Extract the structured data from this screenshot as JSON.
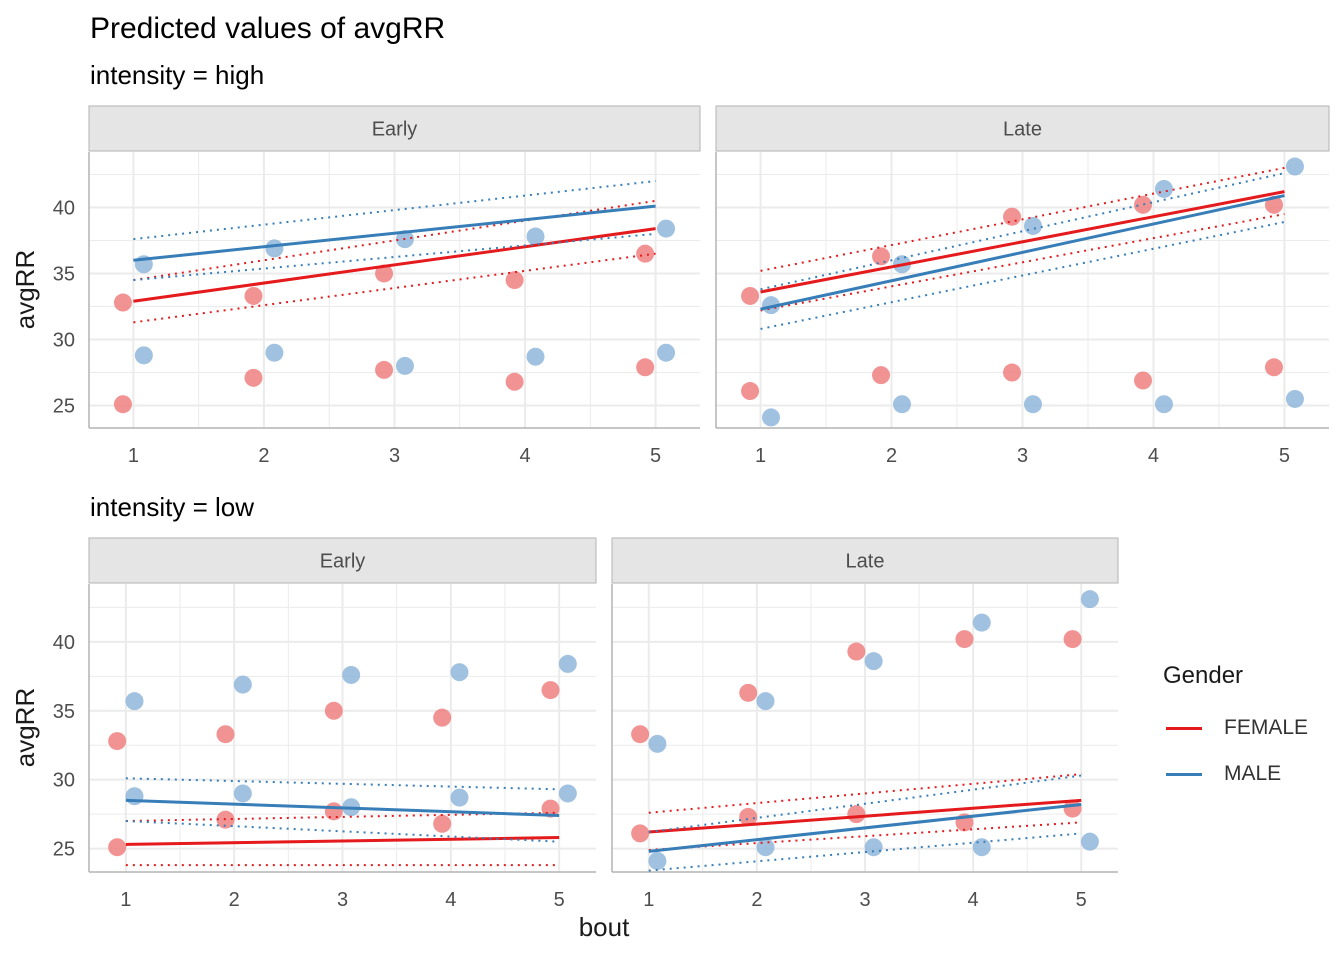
{
  "title": "Predicted values of avgRR",
  "x_axis_label": "bout",
  "y_axis_label": "avgRR",
  "legend": {
    "title": "Gender",
    "items": [
      {
        "label": "FEMALE",
        "color": "#e41a1c"
      },
      {
        "label": "MALE",
        "color": "#377eb8"
      }
    ]
  },
  "colors": {
    "FEMALE_point": "#f08080",
    "MALE_point": "#8fb6d9",
    "strip_bg": "#e5e5e5",
    "grid": "#ebebeb"
  },
  "chart_data": {
    "type": "scatter",
    "x_ticks": [
      "1",
      "2",
      "3",
      "4",
      "5"
    ],
    "y_ticks": [
      "25",
      "30",
      "35",
      "40"
    ],
    "xlim": [
      0.66,
      5.34
    ],
    "ylim": [
      23.3,
      44.2
    ],
    "observed_points": {
      "FEMALE": {
        "Early": [
          [
            1,
            32.8
          ],
          [
            1,
            25.1
          ],
          [
            2,
            33.3
          ],
          [
            2,
            27.1
          ],
          [
            3,
            35.0
          ],
          [
            3,
            27.7
          ],
          [
            4,
            34.5
          ],
          [
            4,
            26.8
          ],
          [
            5,
            36.5
          ],
          [
            5,
            27.9
          ]
        ],
        "Late": [
          [
            1,
            33.3
          ],
          [
            1,
            26.1
          ],
          [
            2,
            36.3
          ],
          [
            2,
            27.3
          ],
          [
            3,
            39.3
          ],
          [
            3,
            27.5
          ],
          [
            4,
            40.2
          ],
          [
            4,
            26.9
          ],
          [
            5,
            40.2
          ],
          [
            5,
            27.9
          ]
        ]
      },
      "MALE": {
        "Early": [
          [
            1,
            35.7
          ],
          [
            1,
            28.8
          ],
          [
            2,
            36.9
          ],
          [
            2,
            29.0
          ],
          [
            3,
            37.6
          ],
          [
            3,
            28.0
          ],
          [
            4,
            37.8
          ],
          [
            4,
            28.7
          ],
          [
            5,
            38.4
          ],
          [
            5,
            29.0
          ]
        ],
        "Late": [
          [
            1,
            32.6
          ],
          [
            1,
            24.1
          ],
          [
            2,
            35.7
          ],
          [
            2,
            25.1
          ],
          [
            3,
            38.6
          ],
          [
            3,
            25.1
          ],
          [
            4,
            41.4
          ],
          [
            4,
            25.1
          ],
          [
            5,
            43.1
          ],
          [
            5,
            25.5
          ]
        ]
      }
    },
    "panels": [
      {
        "subtitle": "intensity = high",
        "facets": [
          {
            "strip": "Early",
            "predictions": [
              {
                "series": "FEMALE",
                "x": [
                  1,
                  5
                ],
                "fit": [
                  32.9,
                  38.4
                ],
                "lower": [
                  31.3,
                  36.5
                ],
                "upper": [
                  34.5,
                  40.5
                ]
              },
              {
                "series": "MALE",
                "x": [
                  1,
                  5
                ],
                "fit": [
                  36.0,
                  40.1
                ],
                "lower": [
                  34.5,
                  38.0
                ],
                "upper": [
                  37.6,
                  42.0
                ]
              }
            ]
          },
          {
            "strip": "Late",
            "predictions": [
              {
                "series": "FEMALE",
                "x": [
                  1,
                  5
                ],
                "fit": [
                  33.6,
                  41.2
                ],
                "lower": [
                  32.2,
                  39.5
                ],
                "upper": [
                  35.2,
                  43.0
                ]
              },
              {
                "series": "MALE",
                "x": [
                  1,
                  5
                ],
                "fit": [
                  32.3,
                  40.9
                ],
                "lower": [
                  30.8,
                  38.9
                ],
                "upper": [
                  33.8,
                  42.6
                ]
              }
            ]
          }
        ]
      },
      {
        "subtitle": "intensity = low",
        "facets": [
          {
            "strip": "Early",
            "predictions": [
              {
                "series": "FEMALE",
                "x": [
                  1,
                  5
                ],
                "fit": [
                  25.3,
                  25.8
                ],
                "lower": [
                  23.8,
                  23.8
                ],
                "upper": [
                  27.0,
                  27.6
                ]
              },
              {
                "series": "MALE",
                "x": [
                  1,
                  5
                ],
                "fit": [
                  28.5,
                  27.4
                ],
                "lower": [
                  27.0,
                  25.5
                ],
                "upper": [
                  30.1,
                  29.3
                ]
              }
            ]
          },
          {
            "strip": "Late",
            "predictions": [
              {
                "series": "FEMALE",
                "x": [
                  1,
                  5
                ],
                "fit": [
                  26.2,
                  28.5
                ],
                "lower": [
                  24.9,
                  26.9
                ],
                "upper": [
                  27.6,
                  30.4
                ]
              },
              {
                "series": "MALE",
                "x": [
                  1,
                  5
                ],
                "fit": [
                  24.8,
                  28.2
                ],
                "lower": [
                  23.4,
                  26.1
                ],
                "upper": [
                  26.2,
                  30.3
                ]
              }
            ]
          }
        ]
      }
    ]
  }
}
